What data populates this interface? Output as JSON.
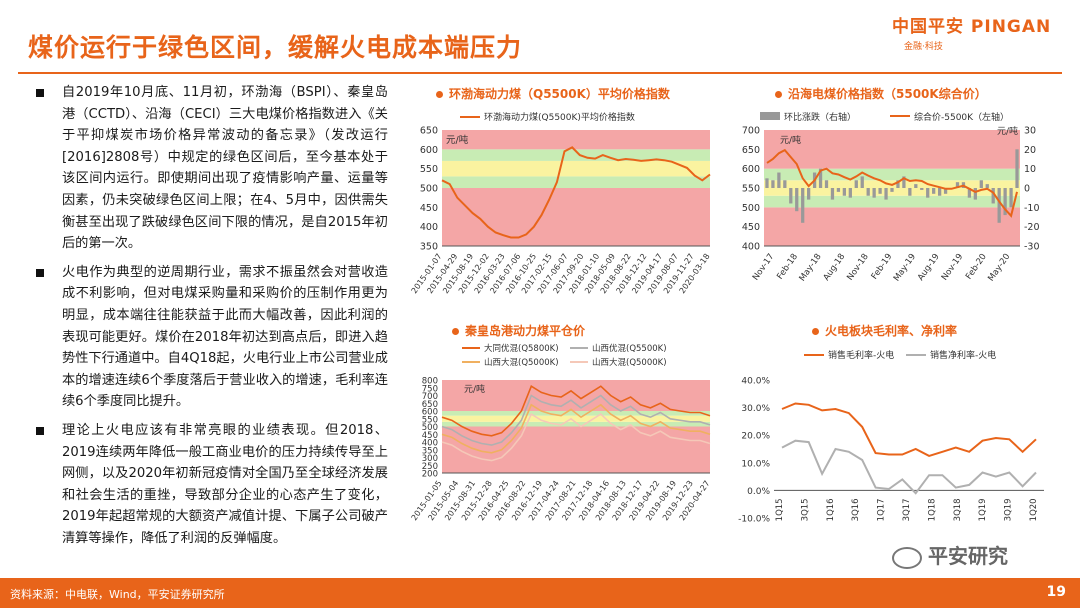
{
  "header": {
    "title": "煤价运行于绿色区间，缓解火电成本端压力",
    "logo_main": "中国平安 PINGAN",
    "logo_sub": "金融·科技"
  },
  "bullets": [
    "自2019年10月底、11月初，环渤海（BSPI）、秦皇岛港（CCTD）、沿海（CECI）三大电煤价格指数进入《关于平抑煤炭市场价格异常波动的备忘录》（发改运行[2016]2808号）中规定的绿色区间后，至今基本处于该区间内运行。即使期间出现了疫情影响产量、运量等因素，仍未突破绿色区间上限；在4、5月中，因供需失衡甚至出现了跌破绿色区间下限的情况，是自2015年初后的第一次。",
    "火电作为典型的逆周期行业，需求不振虽然会对营收造成不利影响，但对电煤采购量和采购价的压制作用更为明显，成本端往往能获益于此而大幅改善，因此利润的表现可能更好。煤价在2018年初达到高点后，即进入趋势性下行通道中。自4Q18起，火电行业上市公司营业成本的增速连续6个季度落后于营业收入的增速，毛利率连续6个季度同比提升。",
    "理论上火电应该有非常亮眼的业绩表现。但2018、2019连续两年降低一般工商业电价的压力持续传导至上网侧，以及2020年初新冠疫情对全国乃至全球经济发展和社会生活的重挫，导致部分企业的心态产生了变化，2019年起超常规的大额资产减值计提、下属子公司破产清算等操作，降低了利润的反弹幅度。"
  ],
  "footer": {
    "source": "资料来源：中电联，Wind，平安证券研究所",
    "page": "19"
  },
  "watermark": "平安研究",
  "colors": {
    "accent": "#e8641a",
    "red_band": "#f4a6a6",
    "yellow_band": "#faf3a0",
    "green_band": "#c8ecb4",
    "gray_bar": "#999999"
  },
  "chart_data": [
    {
      "type": "line",
      "title": "环渤海动力煤（Q5500K）平均价格指数",
      "legend": [
        "环渤海动力煤(Q5500K)平均价格指数"
      ],
      "unit": "元/吨",
      "ylim": [
        350,
        650
      ],
      "yticks": [
        "350",
        "400",
        "450",
        "500",
        "550",
        "600",
        "650"
      ],
      "xticks": [
        "2015-01-07",
        "2015-04-29",
        "2015-08-19",
        "2015-12-02",
        "2016-03-23",
        "2016-07-06",
        "2016-10-25",
        "2017-02-15",
        "2017-06-07",
        "2017-09-20",
        "2018-01-10",
        "2018-05-09",
        "2018-08-22",
        "2018-12-12",
        "2019-04-17",
        "2019-08-07",
        "2019-11-27",
        "2020-03-18"
      ],
      "series": [
        {
          "name": "环渤海动力煤(Q5500K)平均价格指数",
          "x": [
            0,
            2,
            4,
            6,
            8,
            10,
            12,
            14,
            16,
            18,
            20,
            22,
            24,
            26,
            28,
            30,
            32,
            34,
            36,
            38,
            40,
            42,
            44,
            46,
            48,
            50,
            52,
            54,
            56,
            58,
            60,
            62,
            64,
            66,
            68,
            70
          ],
          "values": [
            520,
            510,
            475,
            455,
            435,
            420,
            400,
            385,
            378,
            372,
            372,
            380,
            400,
            430,
            470,
            515,
            595,
            605,
            585,
            578,
            576,
            585,
            578,
            572,
            575,
            573,
            570,
            572,
            574,
            572,
            568,
            560,
            552,
            532,
            520,
            535
          ]
        }
      ]
    },
    {
      "type": "bar+line",
      "title": "沿海电煤价格指数（5500K综合价）",
      "legend": [
        "环比涨跌（右轴）",
        "综合价-5500K（左轴）"
      ],
      "unit_left": "元/吨",
      "unit_right": "元/吨",
      "ylim_left": [
        400,
        700
      ],
      "yticks_left": [
        "400",
        "450",
        "500",
        "550",
        "600",
        "650",
        "700"
      ],
      "ylim_right": [
        -30,
        30
      ],
      "yticks_right": [
        "-30",
        "-20",
        "-10",
        "0",
        "10",
        "20",
        "30"
      ],
      "xticks": [
        "Nov-17",
        "Feb-18",
        "May-18",
        "Aug-18",
        "Nov-18",
        "Feb-19",
        "May-19",
        "Aug-19",
        "Nov-19",
        "Feb-20",
        "May-20"
      ],
      "series": [
        {
          "name": "综合价-5500K（左轴）",
          "values": [
            615,
            625,
            640,
            648,
            630,
            612,
            575,
            555,
            570,
            595,
            600,
            588,
            585,
            578,
            572,
            580,
            590,
            582,
            575,
            570,
            562,
            558,
            565,
            575,
            568,
            570,
            568,
            560,
            556,
            552,
            548,
            548,
            552,
            556,
            548,
            540,
            545,
            548,
            538,
            515,
            495,
            478,
            540
          ]
        },
        {
          "name": "环比涨跌（右轴）",
          "values": [
            5,
            4,
            8,
            4,
            -8,
            -12,
            -18,
            -6,
            8,
            10,
            4,
            -6,
            -2,
            -4,
            -5,
            4,
            6,
            -4,
            -5,
            -3,
            -6,
            -2,
            4,
            6,
            -4,
            2,
            -1,
            -5,
            -3,
            -4,
            -3,
            0,
            3,
            3,
            -5,
            -6,
            4,
            2,
            -8,
            -18,
            -14,
            -10,
            20
          ]
        }
      ]
    },
    {
      "type": "line",
      "title": "秦皇岛港动力煤平仓价",
      "legend": [
        "大同优混(Q5800K)",
        "山西优混(Q5500K)",
        "山西大混(Q5000K)",
        "山西大混(Q5000K)"
      ],
      "unit": "元/吨",
      "ylim": [
        200,
        800
      ],
      "yticks": [
        "200",
        "250",
        "300",
        "350",
        "400",
        "450",
        "500",
        "550",
        "600",
        "650",
        "700",
        "750",
        "800"
      ],
      "xticks": [
        "2015-01-05",
        "2015-05-04",
        "2015-08-31",
        "2015-12-28",
        "2016-04-25",
        "2016-08-22",
        "2016-12-19",
        "2017-04-24",
        "2017-08-21",
        "2017-12-18",
        "2018-04-16",
        "2018-08-13",
        "2018-12-17",
        "2019-04-22",
        "2019-08-19",
        "2019-12-23",
        "2020-04-27"
      ],
      "series": [
        {
          "name": "大同优混(Q5800K)",
          "values": [
            560,
            540,
            500,
            470,
            450,
            440,
            460,
            520,
            600,
            760,
            720,
            700,
            690,
            730,
            680,
            720,
            760,
            700,
            660,
            690,
            640,
            620,
            650,
            610,
            600,
            590,
            590,
            570
          ]
        },
        {
          "name": "山西优混(Q5500K)",
          "values": [
            500,
            480,
            440,
            410,
            390,
            380,
            400,
            460,
            540,
            700,
            660,
            640,
            630,
            670,
            620,
            660,
            700,
            640,
            600,
            630,
            580,
            560,
            590,
            550,
            540,
            530,
            530,
            510
          ]
        },
        {
          "name": "山西大混(Q5000K)",
          "values": [
            450,
            430,
            390,
            360,
            340,
            330,
            350,
            410,
            490,
            640,
            600,
            580,
            570,
            610,
            560,
            600,
            640,
            580,
            540,
            570,
            520,
            500,
            530,
            490,
            480,
            470,
            470,
            450
          ]
        },
        {
          "name": "山西大混(Q5000K)",
          "values": [
            400,
            380,
            340,
            310,
            290,
            280,
            300,
            360,
            440,
            580,
            540,
            520,
            510,
            550,
            500,
            540,
            580,
            520,
            480,
            510,
            460,
            440,
            470,
            430,
            420,
            410,
            410,
            390
          ]
        }
      ]
    },
    {
      "type": "line",
      "title": "火电板块毛利率、净利率",
      "legend": [
        "销售毛利率-火电",
        "销售净利率-火电"
      ],
      "ylim": [
        -10,
        40
      ],
      "yticks": [
        "-10.0%",
        "0.0%",
        "10.0%",
        "20.0%",
        "30.0%",
        "40.0%"
      ],
      "xticks": [
        "1Q15",
        "3Q15",
        "1Q16",
        "3Q16",
        "1Q17",
        "3Q17",
        "1Q18",
        "3Q18",
        "1Q19",
        "3Q19",
        "1Q20"
      ],
      "series": [
        {
          "name": "销售毛利率-火电",
          "values": [
            29.5,
            31.5,
            31,
            29,
            29.5,
            28,
            23,
            13.5,
            13,
            13,
            15,
            12.5,
            14,
            15.5,
            14,
            18,
            19,
            18.5,
            14,
            18.5
          ]
        },
        {
          "name": "销售净利率-火电",
          "values": [
            15.5,
            18,
            17.5,
            6,
            15,
            14,
            11,
            1,
            0.5,
            4,
            -1,
            5.5,
            5.5,
            1,
            2,
            6.5,
            5,
            6.5,
            1.5,
            6.5
          ]
        }
      ]
    }
  ]
}
